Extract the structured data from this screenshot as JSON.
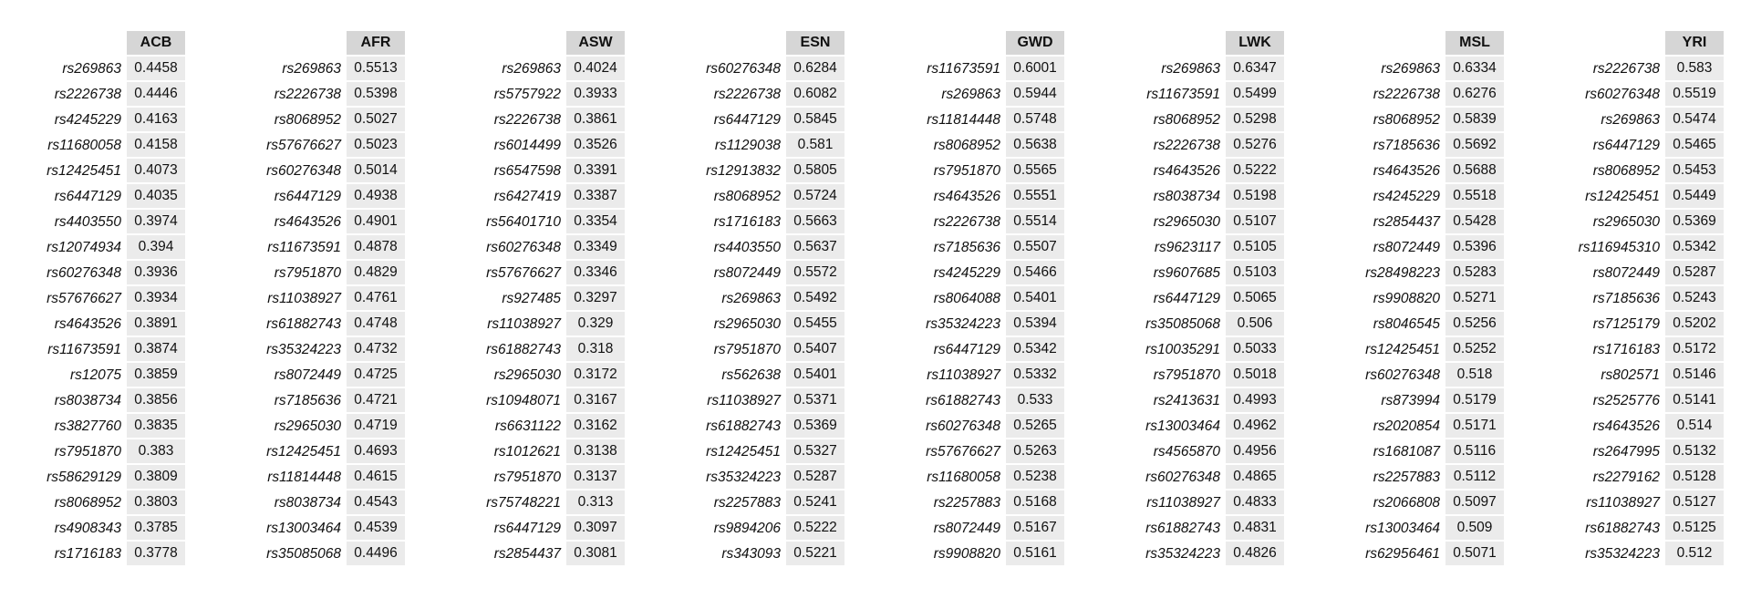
{
  "chart_data": {
    "type": "table",
    "title": "",
    "panels": [
      {
        "population": "ACB",
        "rows": [
          {
            "snp": "rs269863",
            "value": "0.4458"
          },
          {
            "snp": "rs2226738",
            "value": "0.4446"
          },
          {
            "snp": "rs4245229",
            "value": "0.4163"
          },
          {
            "snp": "rs11680058",
            "value": "0.4158"
          },
          {
            "snp": "rs12425451",
            "value": "0.4073"
          },
          {
            "snp": "rs6447129",
            "value": "0.4035"
          },
          {
            "snp": "rs4403550",
            "value": "0.3974"
          },
          {
            "snp": "rs12074934",
            "value": "0.394"
          },
          {
            "snp": "rs60276348",
            "value": "0.3936"
          },
          {
            "snp": "rs57676627",
            "value": "0.3934"
          },
          {
            "snp": "rs4643526",
            "value": "0.3891"
          },
          {
            "snp": "rs11673591",
            "value": "0.3874"
          },
          {
            "snp": "rs12075",
            "value": "0.3859"
          },
          {
            "snp": "rs8038734",
            "value": "0.3856"
          },
          {
            "snp": "rs3827760",
            "value": "0.3835"
          },
          {
            "snp": "rs7951870",
            "value": "0.383"
          },
          {
            "snp": "rs58629129",
            "value": "0.3809"
          },
          {
            "snp": "rs8068952",
            "value": "0.3803"
          },
          {
            "snp": "rs4908343",
            "value": "0.3785"
          },
          {
            "snp": "rs1716183",
            "value": "0.3778"
          }
        ]
      },
      {
        "population": "AFR",
        "rows": [
          {
            "snp": "rs269863",
            "value": "0.5513"
          },
          {
            "snp": "rs2226738",
            "value": "0.5398"
          },
          {
            "snp": "rs8068952",
            "value": "0.5027"
          },
          {
            "snp": "rs57676627",
            "value": "0.5023"
          },
          {
            "snp": "rs60276348",
            "value": "0.5014"
          },
          {
            "snp": "rs6447129",
            "value": "0.4938"
          },
          {
            "snp": "rs4643526",
            "value": "0.4901"
          },
          {
            "snp": "rs11673591",
            "value": "0.4878"
          },
          {
            "snp": "rs7951870",
            "value": "0.4829"
          },
          {
            "snp": "rs11038927",
            "value": "0.4761"
          },
          {
            "snp": "rs61882743",
            "value": "0.4748"
          },
          {
            "snp": "rs35324223",
            "value": "0.4732"
          },
          {
            "snp": "rs8072449",
            "value": "0.4725"
          },
          {
            "snp": "rs7185636",
            "value": "0.4721"
          },
          {
            "snp": "rs2965030",
            "value": "0.4719"
          },
          {
            "snp": "rs12425451",
            "value": "0.4693"
          },
          {
            "snp": "rs11814448",
            "value": "0.4615"
          },
          {
            "snp": "rs8038734",
            "value": "0.4543"
          },
          {
            "snp": "rs13003464",
            "value": "0.4539"
          },
          {
            "snp": "rs35085068",
            "value": "0.4496"
          }
        ]
      },
      {
        "population": "ASW",
        "rows": [
          {
            "snp": "rs269863",
            "value": "0.4024"
          },
          {
            "snp": "rs5757922",
            "value": "0.3933"
          },
          {
            "snp": "rs2226738",
            "value": "0.3861"
          },
          {
            "snp": "rs6014499",
            "value": "0.3526"
          },
          {
            "snp": "rs6547598",
            "value": "0.3391"
          },
          {
            "snp": "rs6427419",
            "value": "0.3387"
          },
          {
            "snp": "rs56401710",
            "value": "0.3354"
          },
          {
            "snp": "rs60276348",
            "value": "0.3349"
          },
          {
            "snp": "rs57676627",
            "value": "0.3346"
          },
          {
            "snp": "rs927485",
            "value": "0.3297"
          },
          {
            "snp": "rs11038927",
            "value": "0.329"
          },
          {
            "snp": "rs61882743",
            "value": "0.318"
          },
          {
            "snp": "rs2965030",
            "value": "0.3172"
          },
          {
            "snp": "rs10948071",
            "value": "0.3167"
          },
          {
            "snp": "rs6631122",
            "value": "0.3162"
          },
          {
            "snp": "rs1012621",
            "value": "0.3138"
          },
          {
            "snp": "rs7951870",
            "value": "0.3137"
          },
          {
            "snp": "rs75748221",
            "value": "0.313"
          },
          {
            "snp": "rs6447129",
            "value": "0.3097"
          },
          {
            "snp": "rs2854437",
            "value": "0.3081"
          }
        ]
      },
      {
        "population": "ESN",
        "rows": [
          {
            "snp": "rs60276348",
            "value": "0.6284"
          },
          {
            "snp": "rs2226738",
            "value": "0.6082"
          },
          {
            "snp": "rs6447129",
            "value": "0.5845"
          },
          {
            "snp": "rs1129038",
            "value": "0.581"
          },
          {
            "snp": "rs12913832",
            "value": "0.5805"
          },
          {
            "snp": "rs8068952",
            "value": "0.5724"
          },
          {
            "snp": "rs1716183",
            "value": "0.5663"
          },
          {
            "snp": "rs4403550",
            "value": "0.5637"
          },
          {
            "snp": "rs8072449",
            "value": "0.5572"
          },
          {
            "snp": "rs269863",
            "value": "0.5492"
          },
          {
            "snp": "rs2965030",
            "value": "0.5455"
          },
          {
            "snp": "rs7951870",
            "value": "0.5407"
          },
          {
            "snp": "rs562638",
            "value": "0.5401"
          },
          {
            "snp": "rs11038927",
            "value": "0.5371"
          },
          {
            "snp": "rs61882743",
            "value": "0.5369"
          },
          {
            "snp": "rs12425451",
            "value": "0.5327"
          },
          {
            "snp": "rs35324223",
            "value": "0.5287"
          },
          {
            "snp": "rs2257883",
            "value": "0.5241"
          },
          {
            "snp": "rs9894206",
            "value": "0.5222"
          },
          {
            "snp": "rs343093",
            "value": "0.5221"
          }
        ]
      },
      {
        "population": "GWD",
        "rows": [
          {
            "snp": "rs11673591",
            "value": "0.6001"
          },
          {
            "snp": "rs269863",
            "value": "0.5944"
          },
          {
            "snp": "rs11814448",
            "value": "0.5748"
          },
          {
            "snp": "rs8068952",
            "value": "0.5638"
          },
          {
            "snp": "rs7951870",
            "value": "0.5565"
          },
          {
            "snp": "rs4643526",
            "value": "0.5551"
          },
          {
            "snp": "rs2226738",
            "value": "0.5514"
          },
          {
            "snp": "rs7185636",
            "value": "0.5507"
          },
          {
            "snp": "rs4245229",
            "value": "0.5466"
          },
          {
            "snp": "rs8064088",
            "value": "0.5401"
          },
          {
            "snp": "rs35324223",
            "value": "0.5394"
          },
          {
            "snp": "rs6447129",
            "value": "0.5342"
          },
          {
            "snp": "rs11038927",
            "value": "0.5332"
          },
          {
            "snp": "rs61882743",
            "value": "0.533"
          },
          {
            "snp": "rs60276348",
            "value": "0.5265"
          },
          {
            "snp": "rs57676627",
            "value": "0.5263"
          },
          {
            "snp": "rs11680058",
            "value": "0.5238"
          },
          {
            "snp": "rs2257883",
            "value": "0.5168"
          },
          {
            "snp": "rs8072449",
            "value": "0.5167"
          },
          {
            "snp": "rs9908820",
            "value": "0.5161"
          }
        ]
      },
      {
        "population": "LWK",
        "rows": [
          {
            "snp": "rs269863",
            "value": "0.6347"
          },
          {
            "snp": "rs11673591",
            "value": "0.5499"
          },
          {
            "snp": "rs8068952",
            "value": "0.5298"
          },
          {
            "snp": "rs2226738",
            "value": "0.5276"
          },
          {
            "snp": "rs4643526",
            "value": "0.5222"
          },
          {
            "snp": "rs8038734",
            "value": "0.5198"
          },
          {
            "snp": "rs2965030",
            "value": "0.5107"
          },
          {
            "snp": "rs9623117",
            "value": "0.5105"
          },
          {
            "snp": "rs9607685",
            "value": "0.5103"
          },
          {
            "snp": "rs6447129",
            "value": "0.5065"
          },
          {
            "snp": "rs35085068",
            "value": "0.506"
          },
          {
            "snp": "rs10035291",
            "value": "0.5033"
          },
          {
            "snp": "rs7951870",
            "value": "0.5018"
          },
          {
            "snp": "rs2413631",
            "value": "0.4993"
          },
          {
            "snp": "rs13003464",
            "value": "0.4962"
          },
          {
            "snp": "rs4565870",
            "value": "0.4956"
          },
          {
            "snp": "rs60276348",
            "value": "0.4865"
          },
          {
            "snp": "rs11038927",
            "value": "0.4833"
          },
          {
            "snp": "rs61882743",
            "value": "0.4831"
          },
          {
            "snp": "rs35324223",
            "value": "0.4826"
          }
        ]
      },
      {
        "population": "MSL",
        "rows": [
          {
            "snp": "rs269863",
            "value": "0.6334"
          },
          {
            "snp": "rs2226738",
            "value": "0.6276"
          },
          {
            "snp": "rs8068952",
            "value": "0.5839"
          },
          {
            "snp": "rs7185636",
            "value": "0.5692"
          },
          {
            "snp": "rs4643526",
            "value": "0.5688"
          },
          {
            "snp": "rs4245229",
            "value": "0.5518"
          },
          {
            "snp": "rs2854437",
            "value": "0.5428"
          },
          {
            "snp": "rs8072449",
            "value": "0.5396"
          },
          {
            "snp": "rs28498223",
            "value": "0.5283"
          },
          {
            "snp": "rs9908820",
            "value": "0.5271"
          },
          {
            "snp": "rs8046545",
            "value": "0.5256"
          },
          {
            "snp": "rs12425451",
            "value": "0.5252"
          },
          {
            "snp": "rs60276348",
            "value": "0.518"
          },
          {
            "snp": "rs873994",
            "value": "0.5179"
          },
          {
            "snp": "rs2020854",
            "value": "0.5171"
          },
          {
            "snp": "rs1681087",
            "value": "0.5116"
          },
          {
            "snp": "rs2257883",
            "value": "0.5112"
          },
          {
            "snp": "rs2066808",
            "value": "0.5097"
          },
          {
            "snp": "rs13003464",
            "value": "0.509"
          },
          {
            "snp": "rs62956461",
            "value": "0.5071"
          }
        ]
      },
      {
        "population": "YRI",
        "rows": [
          {
            "snp": "rs2226738",
            "value": "0.583"
          },
          {
            "snp": "rs60276348",
            "value": "0.5519"
          },
          {
            "snp": "rs269863",
            "value": "0.5474"
          },
          {
            "snp": "rs6447129",
            "value": "0.5465"
          },
          {
            "snp": "rs8068952",
            "value": "0.5453"
          },
          {
            "snp": "rs12425451",
            "value": "0.5449"
          },
          {
            "snp": "rs2965030",
            "value": "0.5369"
          },
          {
            "snp": "rs116945310",
            "value": "0.5342"
          },
          {
            "snp": "rs8072449",
            "value": "0.5287"
          },
          {
            "snp": "rs7185636",
            "value": "0.5243"
          },
          {
            "snp": "rs7125179",
            "value": "0.5202"
          },
          {
            "snp": "rs1716183",
            "value": "0.5172"
          },
          {
            "snp": "rs802571",
            "value": "0.5146"
          },
          {
            "snp": "rs2525776",
            "value": "0.5141"
          },
          {
            "snp": "rs4643526",
            "value": "0.514"
          },
          {
            "snp": "rs2647995",
            "value": "0.5132"
          },
          {
            "snp": "rs2279162",
            "value": "0.5128"
          },
          {
            "snp": "rs11038927",
            "value": "0.5127"
          },
          {
            "snp": "rs61882743",
            "value": "0.5125"
          },
          {
            "snp": "rs35324223",
            "value": "0.512"
          }
        ]
      }
    ],
    "header_color": "#d6d6d6",
    "cell_color": "#ebebeb"
  }
}
